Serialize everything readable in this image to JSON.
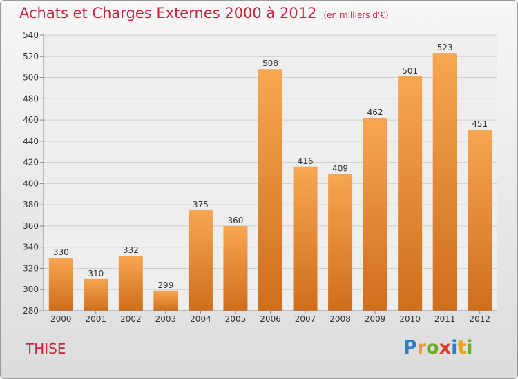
{
  "header": {
    "title": "Achats et Charges Externes 2000 à 2012",
    "subtitle": "(en milliers d'€)"
  },
  "footer": {
    "commune": "THISE",
    "logo": {
      "letters": [
        "P",
        "r",
        "o",
        "x",
        "i",
        "t",
        "i"
      ],
      "colors": [
        "#2a7fc6",
        "#e8a21a",
        "#6ab023",
        "#e03a2a",
        "#2a7fc6",
        "#e8a21a",
        "#6ab023"
      ]
    }
  },
  "colors": {
    "bar_top": "#f7a652",
    "bar_bottom": "#cf6e1c",
    "title": "#c8243f"
  },
  "chart_data": {
    "type": "bar",
    "title": "Achats et Charges Externes 2000 à 2012",
    "subtitle": "(en milliers d'€)",
    "categories": [
      "2000",
      "2001",
      "2002",
      "2003",
      "2004",
      "2005",
      "2006",
      "2007",
      "2008",
      "2009",
      "2010",
      "2011",
      "2012"
    ],
    "values": [
      330,
      310,
      332,
      299,
      375,
      360,
      508,
      416,
      409,
      462,
      501,
      523,
      451
    ],
    "ylim": [
      280,
      540
    ],
    "yticks": [
      280,
      300,
      320,
      340,
      360,
      380,
      400,
      420,
      440,
      460,
      480,
      500,
      520,
      540
    ],
    "grid": true,
    "legend": "none"
  }
}
